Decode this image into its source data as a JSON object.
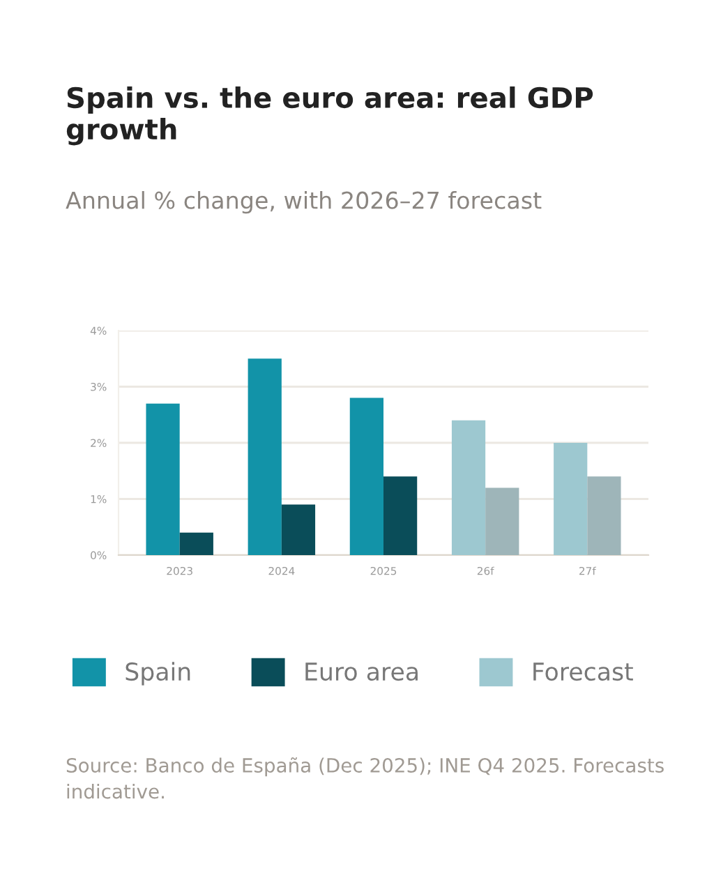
{
  "chart_data": {
    "type": "bar",
    "title": "Spain vs. the euro area: real GDP growth",
    "subtitle": "Annual % change, with 2026–27 forecast",
    "categories": [
      "2023",
      "2024",
      "2025",
      "26f",
      "27f"
    ],
    "series": [
      {
        "name": "Spain",
        "color": "#1293a8",
        "colors": [
          "#1293a8",
          "#1293a8",
          "#1293a8",
          "#9dc8d0",
          "#9dc8d0"
        ],
        "values": [
          2.7,
          3.5,
          2.8,
          2.4,
          2.0
        ]
      },
      {
        "name": "Euro area",
        "color": "#0a4d59",
        "colors": [
          "#0a4d59",
          "#0a4d59",
          "#0a4d59",
          "#9eb5b9",
          "#9eb5b9"
        ],
        "values": [
          0.4,
          0.9,
          1.4,
          1.2,
          1.4
        ]
      },
      {
        "name": "Forecast",
        "color": "#9dc8d0",
        "values": [
          null,
          null,
          null,
          null,
          null
        ]
      }
    ],
    "ylim": [
      0,
      4
    ],
    "yticks": [
      {
        "value": 0,
        "label": "0%"
      },
      {
        "value": 1,
        "label": "1%"
      },
      {
        "value": 2,
        "label": "2%"
      },
      {
        "value": 3,
        "label": "3%"
      },
      {
        "value": 4,
        "label": "4%"
      }
    ],
    "grid": "y",
    "legend": "bottom",
    "annotations": [
      "Source: Banco de España (Dec 2025); INE Q4 2025. Forecasts indicative."
    ]
  }
}
